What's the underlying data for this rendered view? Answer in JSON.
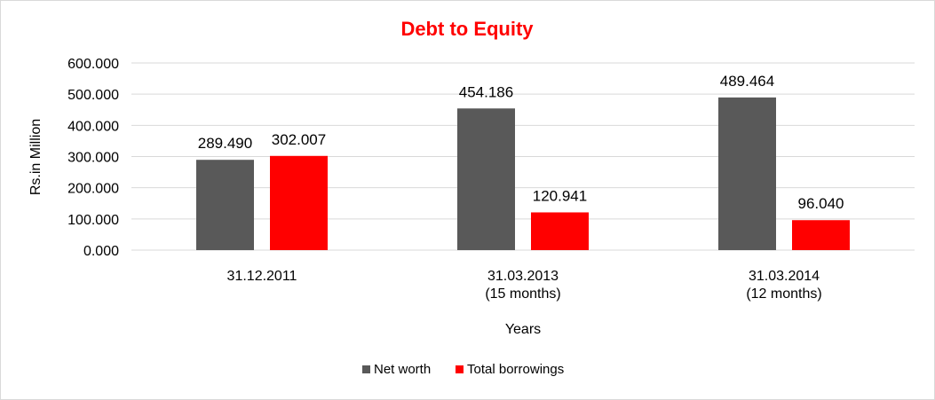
{
  "chart_data": {
    "type": "bar",
    "title": "Debt to Equity",
    "xlabel": "Years",
    "ylabel": "Rs.in Million",
    "categories": [
      [
        "31.12.2011"
      ],
      [
        "31.03.2013",
        "(15 months)"
      ],
      [
        "31.03.2014",
        "(12 months)"
      ]
    ],
    "series": [
      {
        "name": "Net worth",
        "color": "#595959",
        "values": [
          289.49,
          454.186,
          489.464
        ],
        "labels": [
          "289.490",
          "454.186",
          "489.464"
        ]
      },
      {
        "name": "Total borrowings",
        "color": "#FF0000",
        "values": [
          302.007,
          120.941,
          96.04
        ],
        "labels": [
          "302.007",
          "120.941",
          "96.040"
        ]
      }
    ],
    "ylim": [
      0,
      600
    ],
    "yticks": [
      "0.000",
      "100.000",
      "200.000",
      "300.000",
      "400.000",
      "500.000",
      "600.000"
    ],
    "grid": true,
    "legend_position": "bottom",
    "colors": {
      "title": "#FF0000",
      "grid": "#D9D9D9",
      "frame": "#D9D9D9"
    }
  }
}
